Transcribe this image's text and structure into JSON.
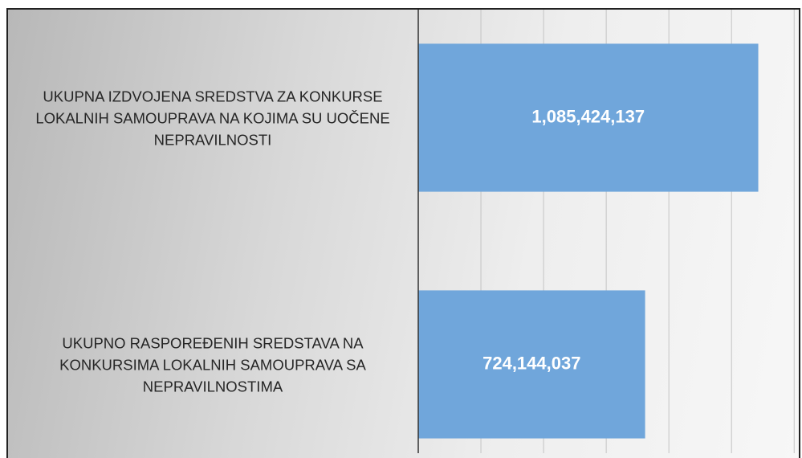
{
  "chart_data": {
    "type": "bar",
    "orientation": "horizontal",
    "categories": [
      "UKUPNA IZDVOJENA SREDSTVA ZA KONKURSE LOKALNIH SAMOUPRAVA NA KOJIMA SU UOČENE NEPRAVILNOSTI",
      "UKUPNO RASPOREĐENIH SREDSTAVA NA KONKURSIMA LOKALNIH SAMOUPRAVA SA NEPRAVILNOSTIMA"
    ],
    "values": [
      1085424137,
      724144037
    ],
    "value_labels": [
      "1,085,424,137",
      "724,144,037"
    ],
    "color": "#70a6db",
    "xlim": [
      0,
      1225000000
    ],
    "xticks": [
      0,
      200000000,
      400000000,
      600000000,
      800000000,
      1000000000,
      1200000000
    ],
    "grid": true
  }
}
